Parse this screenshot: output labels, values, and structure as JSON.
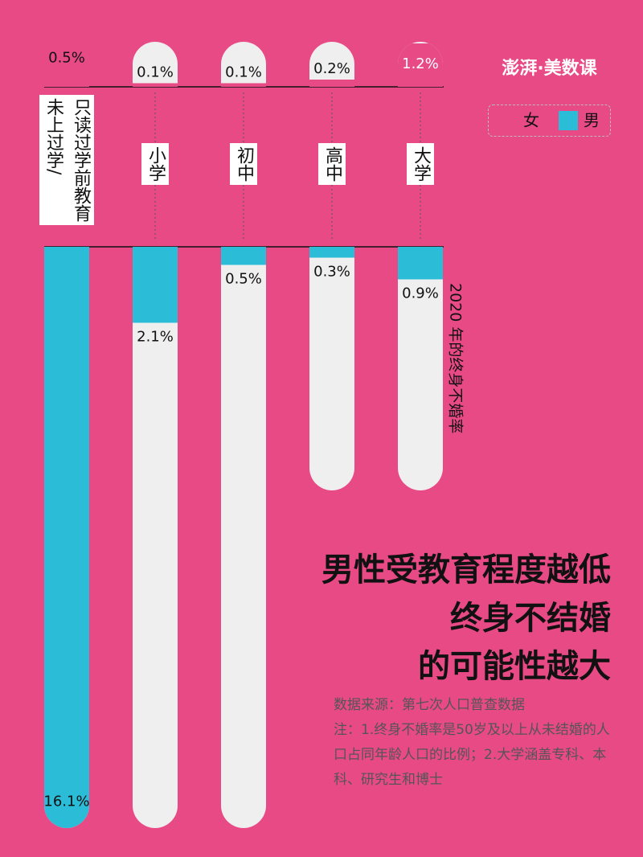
{
  "chart_data": {
    "type": "bar",
    "title": [
      "男性受教育程度越低",
      "终身不结婚",
      "的可能性越大"
    ],
    "axis_label": "2020 年的终身不婚率",
    "categories": [
      "未上过学/\n只读过学前教育",
      "小学",
      "初中",
      "高中",
      "大学"
    ],
    "series": [
      {
        "name": "女",
        "color": "#e84a86",
        "values": [
          0.5,
          0.1,
          0.1,
          0.2,
          1.2
        ],
        "value_labels": [
          "0.5%",
          "0.1%",
          "0.1%",
          "0.2%",
          "1.2%"
        ]
      },
      {
        "name": "男",
        "color": "#2bbcd8",
        "values": [
          16.1,
          2.1,
          0.5,
          0.3,
          0.9
        ],
        "value_labels": [
          "16.1%",
          "2.1%",
          "0.5%",
          "0.3%",
          "0.9%"
        ]
      }
    ],
    "source": "数据来源：第七次人口普查数据",
    "note": "注：1.终身不婚率是50岁及以上从未结婚的人口占同年龄人口的比例；2.大学涵盖专科、本科、研究生和博士",
    "logo": "澎湃·美数课"
  }
}
